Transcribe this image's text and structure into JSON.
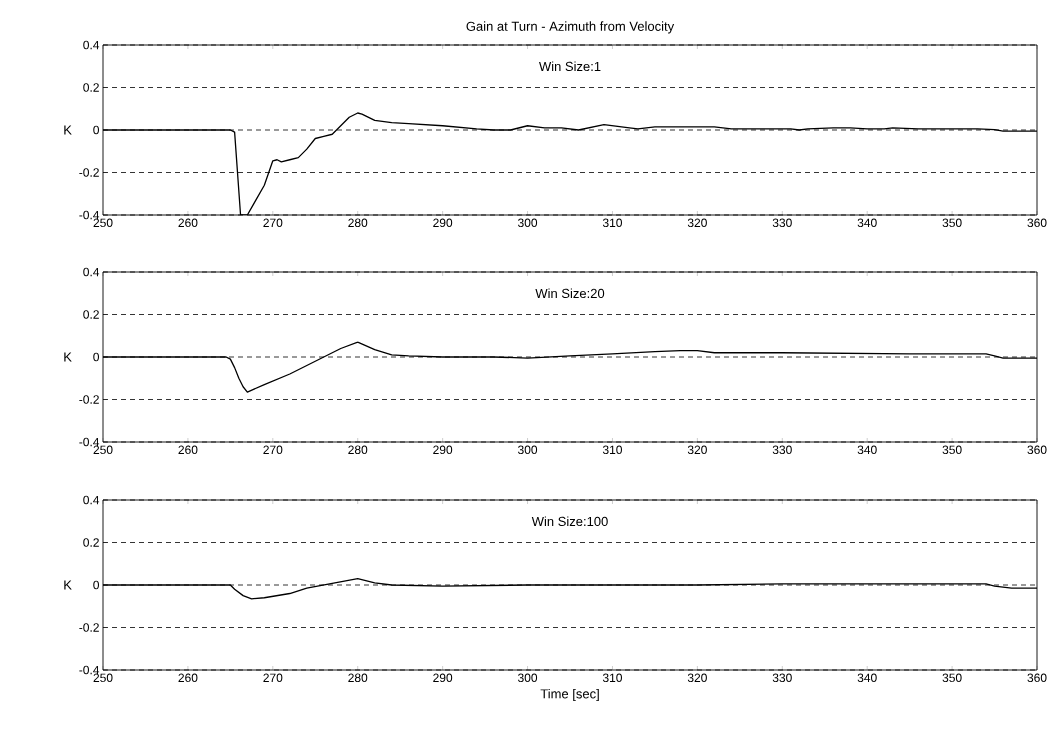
{
  "chart_data": [
    {
      "type": "line",
      "title": "Gain at Turn - Azimuth from Velocity",
      "annotations": [
        "Win Size:1"
      ],
      "ylabel": "K",
      "xlim": [
        250,
        360
      ],
      "xticks": [
        250,
        260,
        270,
        280,
        290,
        300,
        310,
        320,
        330,
        340,
        350,
        360
      ],
      "ylim": [
        -0.4,
        0.4
      ],
      "yticks": [
        -0.4,
        -0.2,
        0,
        0.2,
        0.4
      ],
      "grid": "y",
      "series": [
        {
          "color": "#000000",
          "x": [
            250,
            265,
            265.5,
            266.2,
            267,
            268,
            269,
            270,
            270.5,
            271,
            272,
            273,
            274,
            275,
            276,
            277,
            278,
            279,
            280,
            280.5,
            282,
            284,
            286,
            290,
            294,
            296,
            298,
            300,
            302,
            304,
            306,
            309,
            312,
            313,
            315,
            320,
            322,
            324,
            327,
            331,
            332,
            333,
            336,
            338,
            340,
            342,
            343,
            346,
            350,
            353,
            355,
            356,
            360
          ],
          "values": [
            0,
            0,
            -0.01,
            -0.4,
            -0.4,
            -0.33,
            -0.26,
            -0.145,
            -0.14,
            -0.15,
            -0.14,
            -0.13,
            -0.09,
            -0.04,
            -0.03,
            -0.02,
            0.02,
            0.06,
            0.08,
            0.075,
            0.045,
            0.035,
            0.03,
            0.02,
            0.005,
            0,
            0,
            0.02,
            0.01,
            0.01,
            0,
            0.025,
            0.01,
            0.005,
            0.015,
            0.015,
            0.015,
            0.005,
            0.005,
            0.005,
            0,
            0.005,
            0.01,
            0.01,
            0.005,
            0.005,
            0.01,
            0.005,
            0.005,
            0.005,
            0.002,
            -0.005,
            -0.005
          ]
        }
      ]
    },
    {
      "type": "line",
      "annotations": [
        "Win Size:20"
      ],
      "ylabel": "K",
      "xlim": [
        250,
        360
      ],
      "xticks": [
        250,
        260,
        270,
        280,
        290,
        300,
        310,
        320,
        330,
        340,
        350,
        360
      ],
      "ylim": [
        -0.4,
        0.4
      ],
      "yticks": [
        -0.4,
        -0.2,
        0,
        0.2,
        0.4
      ],
      "grid": "y",
      "series": [
        {
          "color": "#000000",
          "x": [
            250,
            264.5,
            265,
            265.5,
            266,
            266.5,
            267,
            269,
            272,
            274,
            276,
            278,
            280,
            282,
            284,
            286,
            290,
            296,
            300,
            305,
            310,
            315,
            318,
            320,
            322,
            330,
            345,
            354,
            355,
            356,
            360
          ],
          "values": [
            0,
            0,
            -0.01,
            -0.05,
            -0.1,
            -0.14,
            -0.165,
            -0.13,
            -0.08,
            -0.04,
            0,
            0.04,
            0.07,
            0.035,
            0.01,
            0.005,
            0,
            0,
            -0.005,
            0.005,
            0.015,
            0.025,
            0.03,
            0.03,
            0.02,
            0.02,
            0.015,
            0.015,
            0.005,
            -0.005,
            -0.005
          ]
        }
      ]
    },
    {
      "type": "line",
      "annotations": [
        "Win Size:100"
      ],
      "ylabel": "K",
      "xlabel": "Time [sec]",
      "xlim": [
        250,
        360
      ],
      "xticks": [
        250,
        260,
        270,
        280,
        290,
        300,
        310,
        320,
        330,
        340,
        350,
        360
      ],
      "ylim": [
        -0.4,
        0.4
      ],
      "yticks": [
        -0.4,
        -0.2,
        0,
        0.2,
        0.4
      ],
      "grid": "y",
      "series": [
        {
          "color": "#000000",
          "x": [
            250,
            265,
            265.5,
            266.5,
            267.5,
            269,
            272,
            274,
            276,
            278,
            280,
            282,
            284,
            290,
            300,
            320,
            330,
            345,
            354,
            355,
            357,
            360
          ],
          "values": [
            0,
            0,
            -0.02,
            -0.05,
            -0.065,
            -0.06,
            -0.04,
            -0.015,
            0,
            0.015,
            0.03,
            0.01,
            0,
            -0.005,
            0,
            0,
            0.005,
            0.005,
            0.005,
            -0.005,
            -0.015,
            -0.015
          ]
        }
      ]
    }
  ]
}
